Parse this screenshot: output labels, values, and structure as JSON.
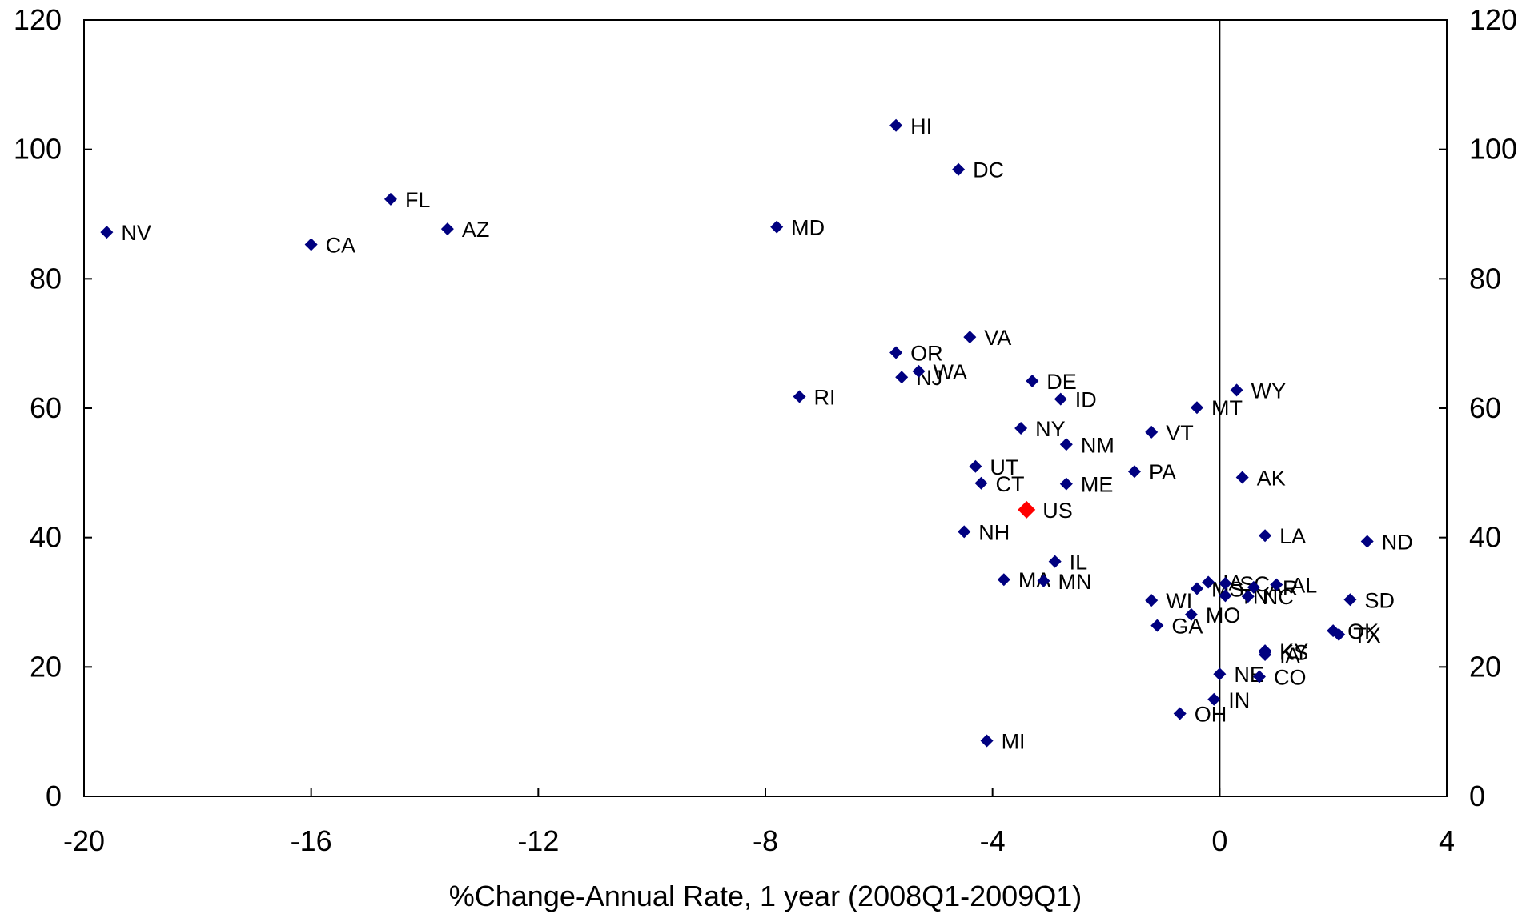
{
  "chart_data": {
    "type": "scatter",
    "xlabel": "%Change-Annual Rate, 1 year (2008Q1-2009Q1)",
    "ylabel": "",
    "xlim": [
      -20,
      4
    ],
    "ylim": [
      0,
      120
    ],
    "x_ticks": [
      "-20",
      "-16",
      "-12",
      "-8",
      "-4",
      "0",
      "4"
    ],
    "y_ticks": [
      "0",
      "20",
      "40",
      "60",
      "80",
      "100",
      "120"
    ],
    "y_ticks_right": [
      "0",
      "20",
      "40",
      "60",
      "80",
      "100",
      "120"
    ],
    "grid": false,
    "vertical_reference_line_x": 0,
    "colors": {
      "points": "#000080",
      "highlight": "#ff0000"
    },
    "points": [
      {
        "label": "NV",
        "x": -19.6,
        "y": 87.2
      },
      {
        "label": "CA",
        "x": -16.0,
        "y": 85.3
      },
      {
        "label": "FL",
        "x": -14.6,
        "y": 92.3
      },
      {
        "label": "AZ",
        "x": -13.6,
        "y": 87.7
      },
      {
        "label": "MD",
        "x": -7.8,
        "y": 88.0
      },
      {
        "label": "RI",
        "x": -7.4,
        "y": 61.8
      },
      {
        "label": "HI",
        "x": -5.7,
        "y": 103.7
      },
      {
        "label": "DC",
        "x": -4.6,
        "y": 96.9
      },
      {
        "label": "OR",
        "x": -5.7,
        "y": 68.6
      },
      {
        "label": "NJ",
        "x": -5.6,
        "y": 64.8
      },
      {
        "label": "WA",
        "x": -5.3,
        "y": 65.7
      },
      {
        "label": "VA",
        "x": -4.4,
        "y": 71.0
      },
      {
        "label": "DE",
        "x": -3.3,
        "y": 64.2
      },
      {
        "label": "ID",
        "x": -2.8,
        "y": 61.4
      },
      {
        "label": "NY",
        "x": -3.5,
        "y": 56.9
      },
      {
        "label": "NM",
        "x": -2.7,
        "y": 54.4
      },
      {
        "label": "UT",
        "x": -4.3,
        "y": 51.0
      },
      {
        "label": "CT",
        "x": -4.2,
        "y": 48.4
      },
      {
        "label": "ME",
        "x": -2.7,
        "y": 48.3
      },
      {
        "label": "US",
        "x": -3.4,
        "y": 44.3,
        "highlight": true
      },
      {
        "label": "NH",
        "x": -4.5,
        "y": 40.9
      },
      {
        "label": "IL",
        "x": -2.9,
        "y": 36.3
      },
      {
        "label": "MA",
        "x": -3.8,
        "y": 33.5
      },
      {
        "label": "MN",
        "x": -3.1,
        "y": 33.3
      },
      {
        "label": "PA",
        "x": -1.5,
        "y": 50.2
      },
      {
        "label": "VT",
        "x": -1.2,
        "y": 56.3
      },
      {
        "label": "MT",
        "x": -0.4,
        "y": 60.1
      },
      {
        "label": "WY",
        "x": 0.3,
        "y": 62.8
      },
      {
        "label": "AK",
        "x": 0.4,
        "y": 49.3
      },
      {
        "label": "LA",
        "x": 0.8,
        "y": 40.3
      },
      {
        "label": "ND",
        "x": 2.6,
        "y": 39.4
      },
      {
        "label": "WI",
        "x": -1.2,
        "y": 30.3
      },
      {
        "label": "GA",
        "x": -1.1,
        "y": 26.4
      },
      {
        "label": "MO",
        "x": -0.5,
        "y": 28.1
      },
      {
        "label": "MS",
        "x": -0.4,
        "y": 32.1
      },
      {
        "label": "IA",
        "x": -0.2,
        "y": 33.1
      },
      {
        "label": "SC",
        "x": 0.1,
        "y": 32.9
      },
      {
        "label": "TN",
        "x": 0.1,
        "y": 31.0
      },
      {
        "label": "AR",
        "x": 0.6,
        "y": 32.3
      },
      {
        "label": "AL",
        "x": 1.0,
        "y": 32.7
      },
      {
        "label": "NC",
        "x": 0.5,
        "y": 30.9
      },
      {
        "label": "SD",
        "x": 2.3,
        "y": 30.4
      },
      {
        "label": "OK",
        "x": 2.0,
        "y": 25.6
      },
      {
        "label": "TX",
        "x": 2.1,
        "y": 25.0
      },
      {
        "label": "KY",
        "x": 0.8,
        "y": 22.5
      },
      {
        "label": "KS",
        "x": 0.8,
        "y": 22.3
      },
      {
        "label": "IA",
        "x": 0.8,
        "y": 21.9
      },
      {
        "label": "NE",
        "x": 0.0,
        "y": 18.9
      },
      {
        "label": "CO",
        "x": 0.7,
        "y": 18.5
      },
      {
        "label": "IN",
        "x": -0.1,
        "y": 15.0
      },
      {
        "label": "OH",
        "x": -0.7,
        "y": 12.8
      },
      {
        "label": "MI",
        "x": -4.1,
        "y": 8.6
      }
    ]
  }
}
